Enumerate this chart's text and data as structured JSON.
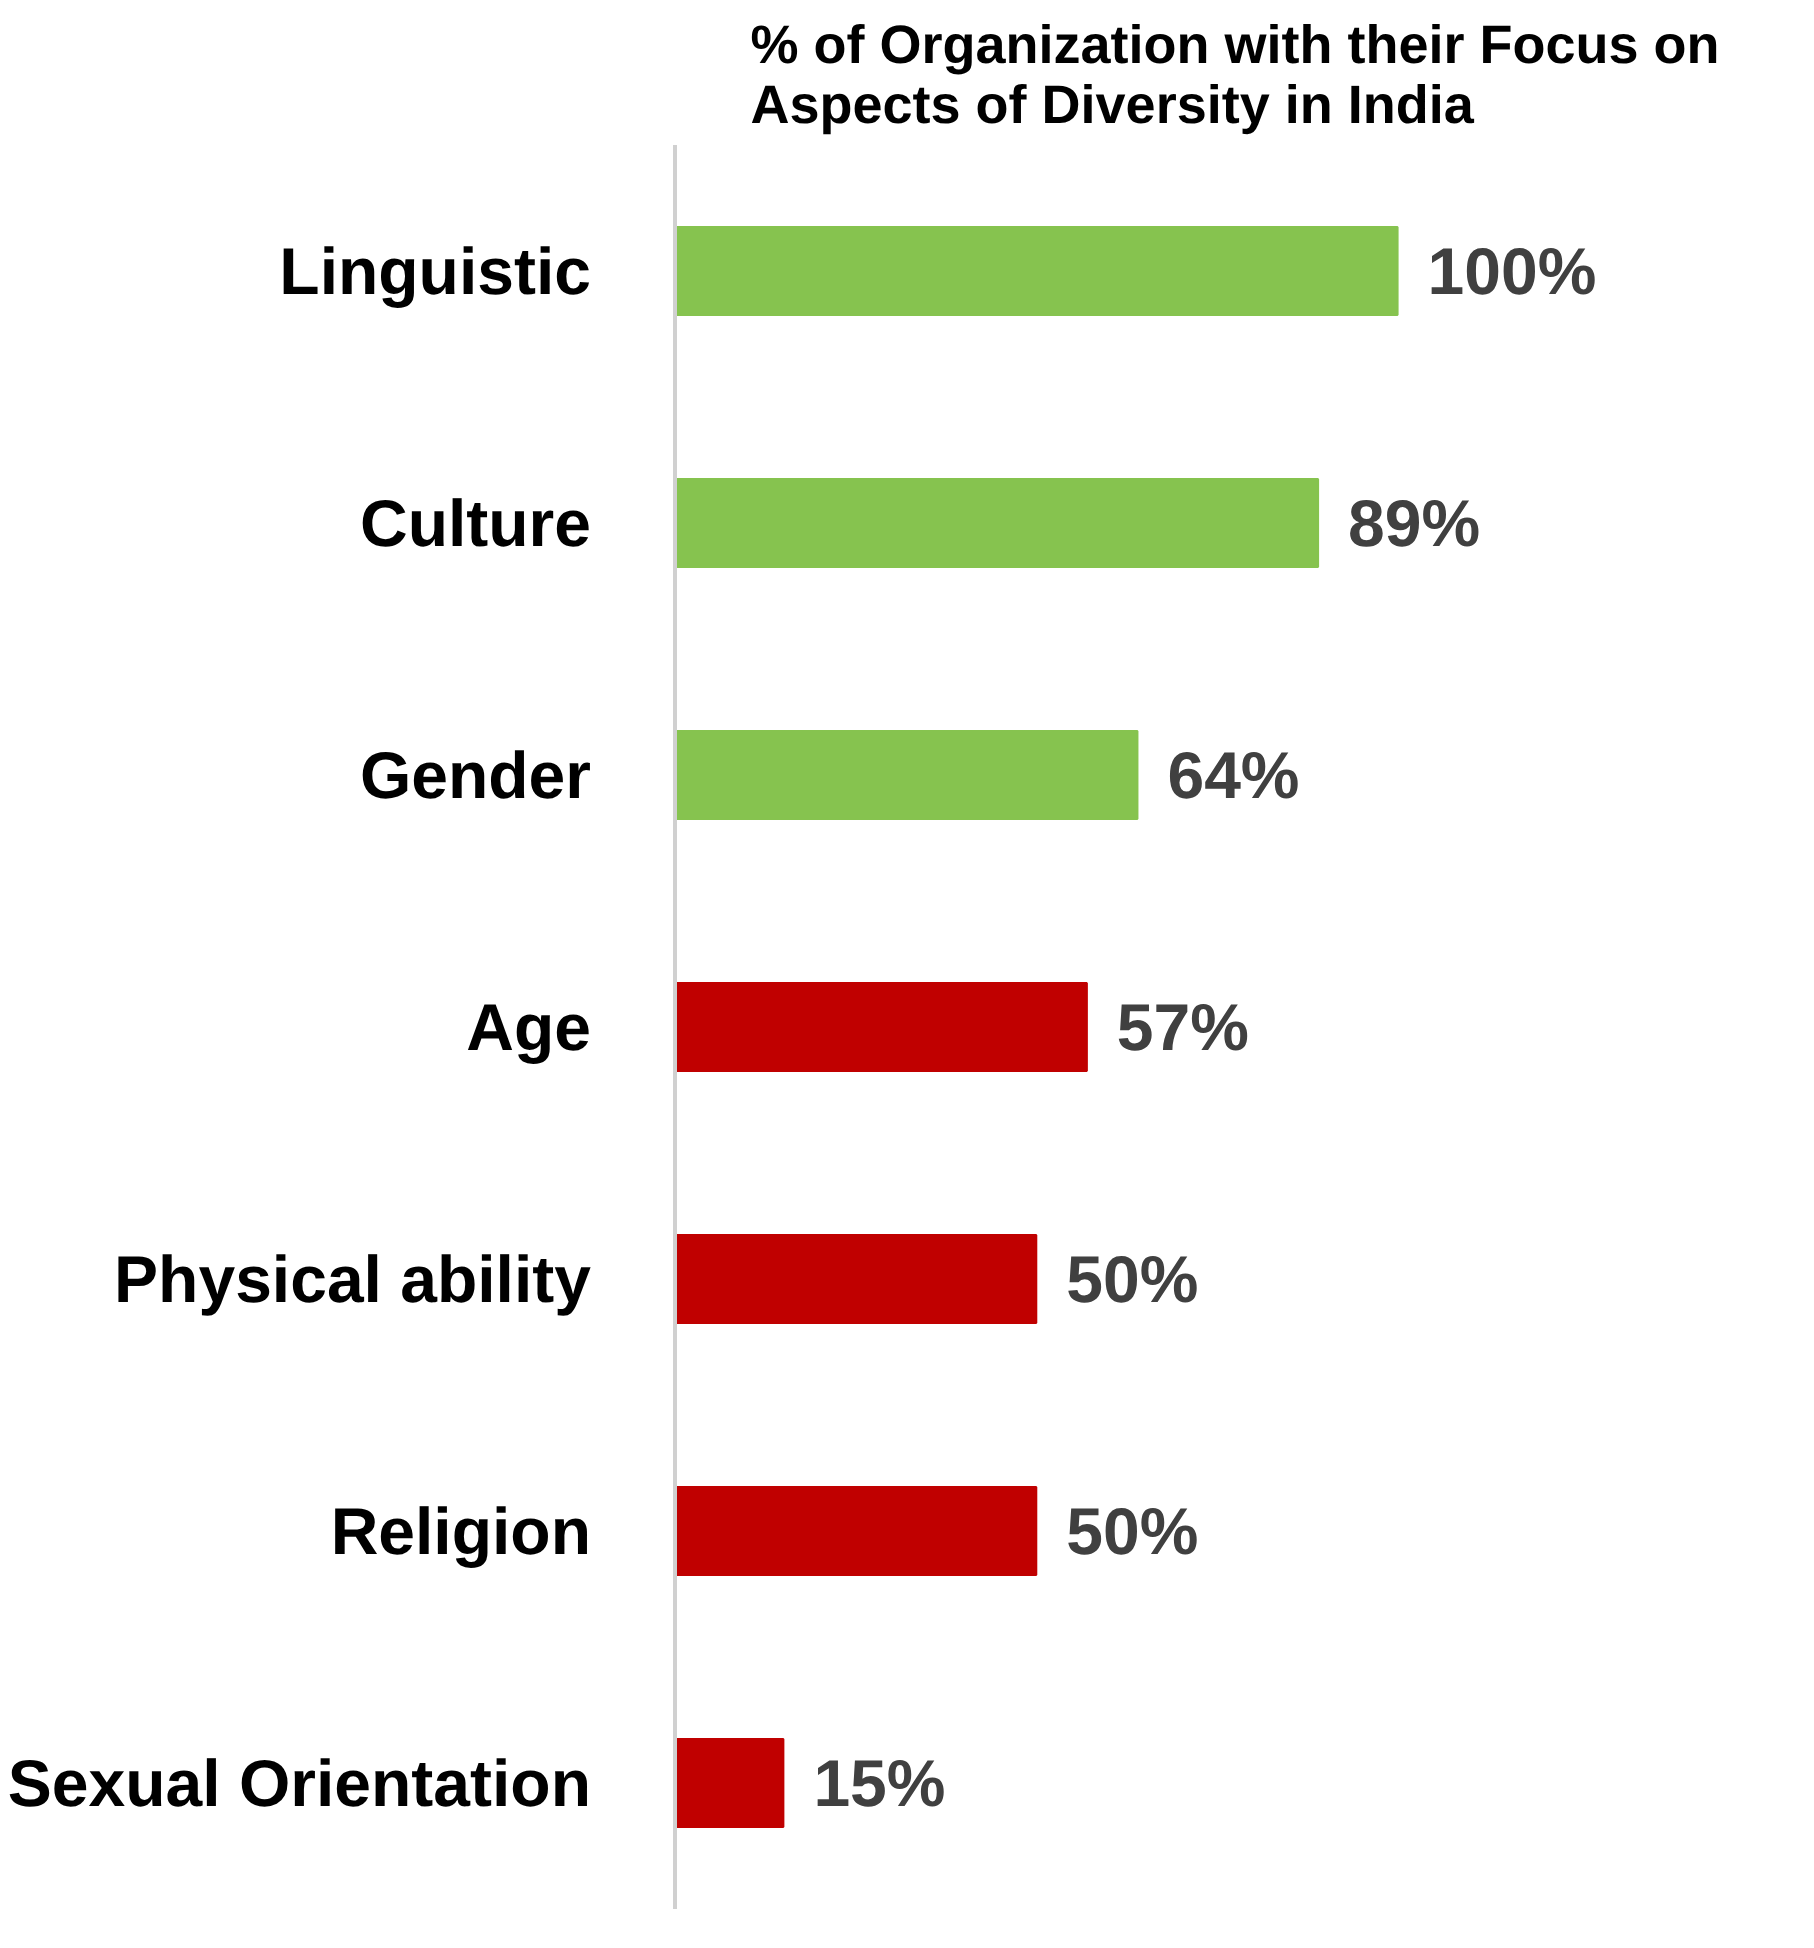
{
  "chart_data": {
    "type": "bar",
    "orientation": "horizontal",
    "title": "% of Organization with their Focus on\nAspects of Diversity in India",
    "categories": [
      "Linguistic",
      "Culture",
      "Gender",
      "Age",
      "Physical ability",
      "Religion",
      "Sexual Orientation"
    ],
    "values": [
      100,
      89,
      64,
      57,
      50,
      50,
      15
    ],
    "value_labels": [
      "100%",
      "89%",
      "64%",
      "57%",
      "50%",
      "50%",
      "15%"
    ],
    "colors": [
      "#86c34f",
      "#86c34f",
      "#86c34f",
      "#c00000",
      "#c00000",
      "#c00000",
      "#c00000"
    ],
    "grid": false
  }
}
